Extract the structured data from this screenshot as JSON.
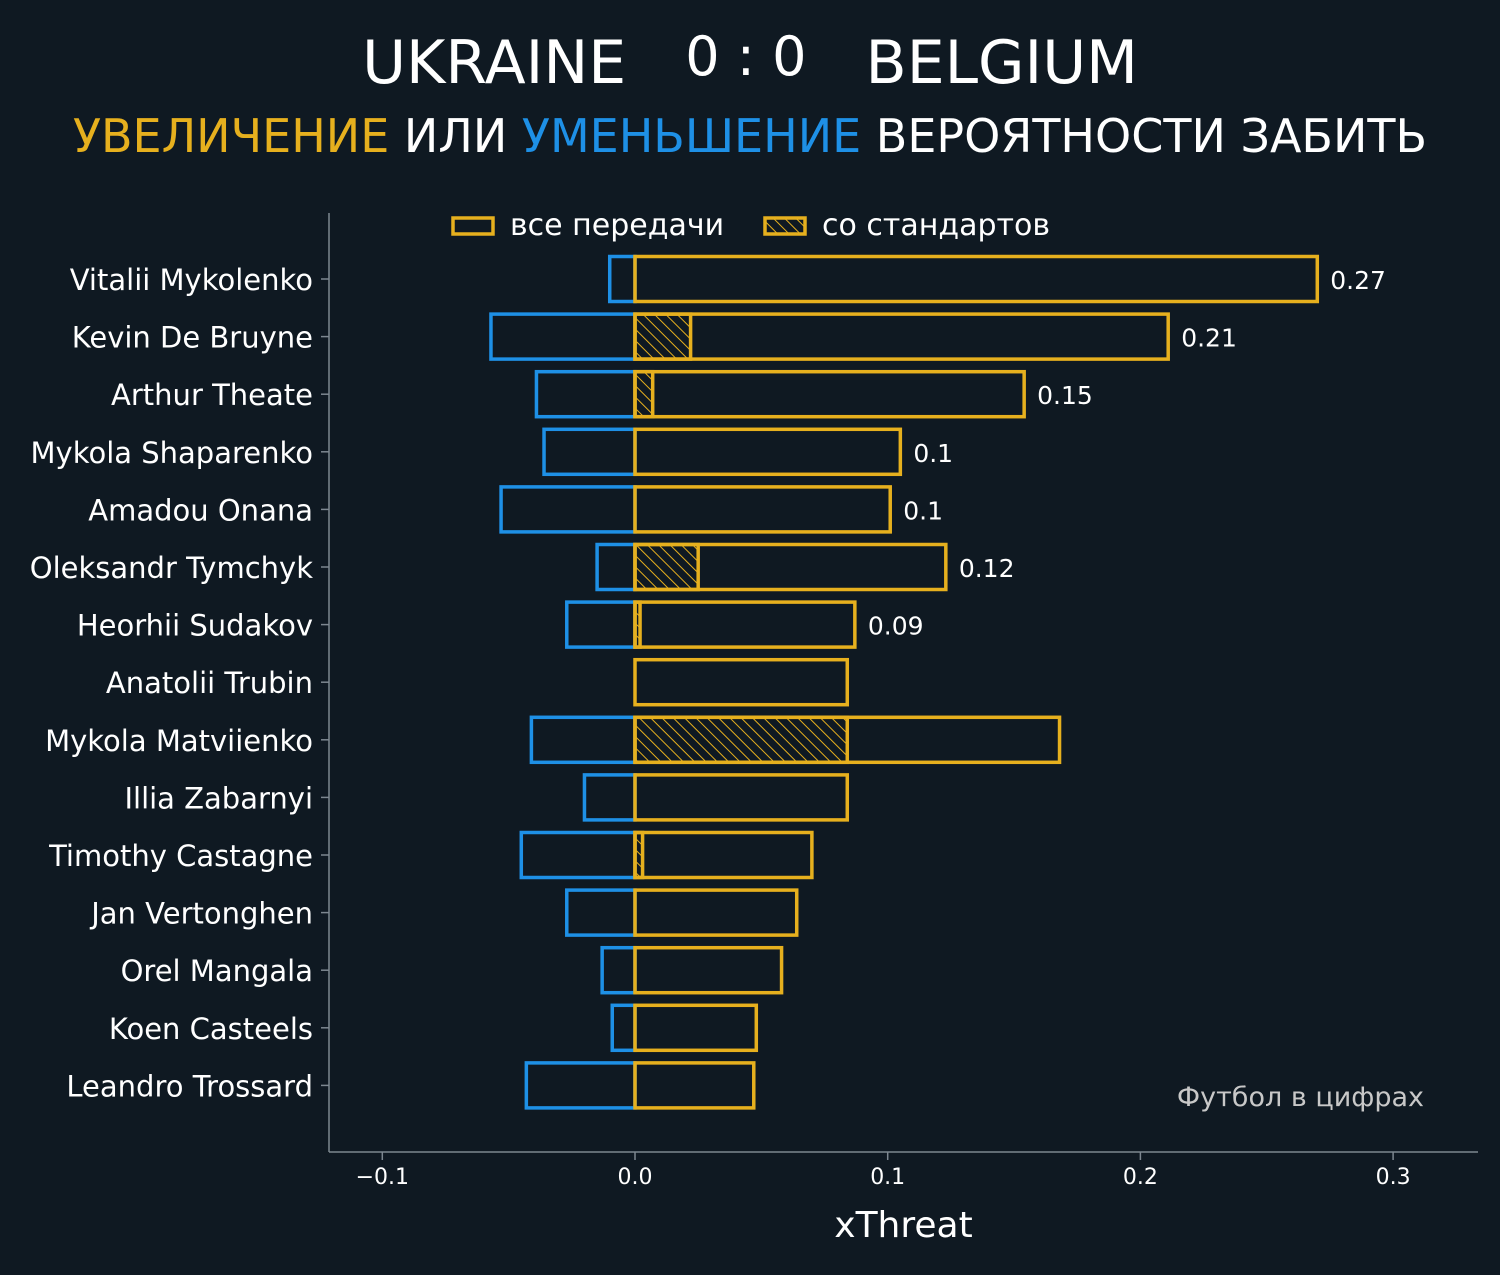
{
  "header": {
    "team_home": "UKRAINE",
    "score": "0 : 0",
    "team_away": "BELGIUM",
    "subtitle_increase": "УВЕЛИЧЕНИЕ",
    "subtitle_or": " ИЛИ ",
    "subtitle_decrease": "УМЕНЬШЕНИЕ",
    "subtitle_rest": " ВЕРОЯТНОСТИ ЗАБИТЬ"
  },
  "colors": {
    "background": "#0f1922",
    "increase": "#e6b01e",
    "decrease": "#1e90e6",
    "axis": "#7d8790",
    "text": "#ffffff",
    "watermark": "#c8c8c8"
  },
  "watermark": "Футбол в цифрах",
  "chart_data": {
    "type": "bar",
    "orientation": "horizontal",
    "xlabel": "xThreat",
    "xlim": [
      -0.122,
      0.335
    ],
    "xticks": [
      -0.1,
      0.0,
      0.1,
      0.2,
      0.3
    ],
    "xtick_labels": [
      "−0.1",
      "0.0",
      "0.1",
      "0.2",
      "0.3"
    ],
    "grid": false,
    "legend": {
      "placement": "top-center",
      "entries": [
        {
          "label": "все передачи",
          "style": "outline"
        },
        {
          "label": "со стандартов",
          "style": "hatched"
        }
      ]
    },
    "categories": [
      "Vitalii Mykolenko",
      "Kevin De Bruyne",
      "Arthur Theate",
      "Mykola Shaparenko",
      "Amadou Onana",
      "Oleksandr Tymchyk",
      "Heorhii Sudakov",
      "Anatolii Trubin",
      "Mykola Matviienko",
      "Illia Zabarnyi",
      "Timothy Castagne",
      "Jan Vertonghen",
      "Orel Mangala",
      "Koen Casteels",
      "Leandro Trossard"
    ],
    "series": [
      {
        "name": "все передачи",
        "values": [
          0.27,
          0.211,
          0.154,
          0.105,
          0.101,
          0.123,
          0.087,
          0.084,
          0.168,
          0.084,
          0.07,
          0.064,
          0.058,
          0.048,
          0.047
        ]
      },
      {
        "name": "со стандартов",
        "values": [
          0,
          0.022,
          0.007,
          0,
          0,
          0.025,
          0.002,
          0,
          0.084,
          0,
          0.003,
          0,
          0,
          0,
          0
        ]
      },
      {
        "values": [
          -0.01,
          -0.057,
          -0.039,
          -0.036,
          -0.053,
          -0.015,
          -0.027,
          0,
          -0.041,
          -0.02,
          -0.045,
          -0.027,
          -0.013,
          -0.009,
          -0.043
        ]
      }
    ],
    "value_labels": [
      "0.27",
      "0.21",
      "0.15",
      "0.1",
      "0.1",
      "0.12",
      "0.09",
      "",
      "",
      "",
      "",
      "",
      "",
      "",
      ""
    ]
  }
}
